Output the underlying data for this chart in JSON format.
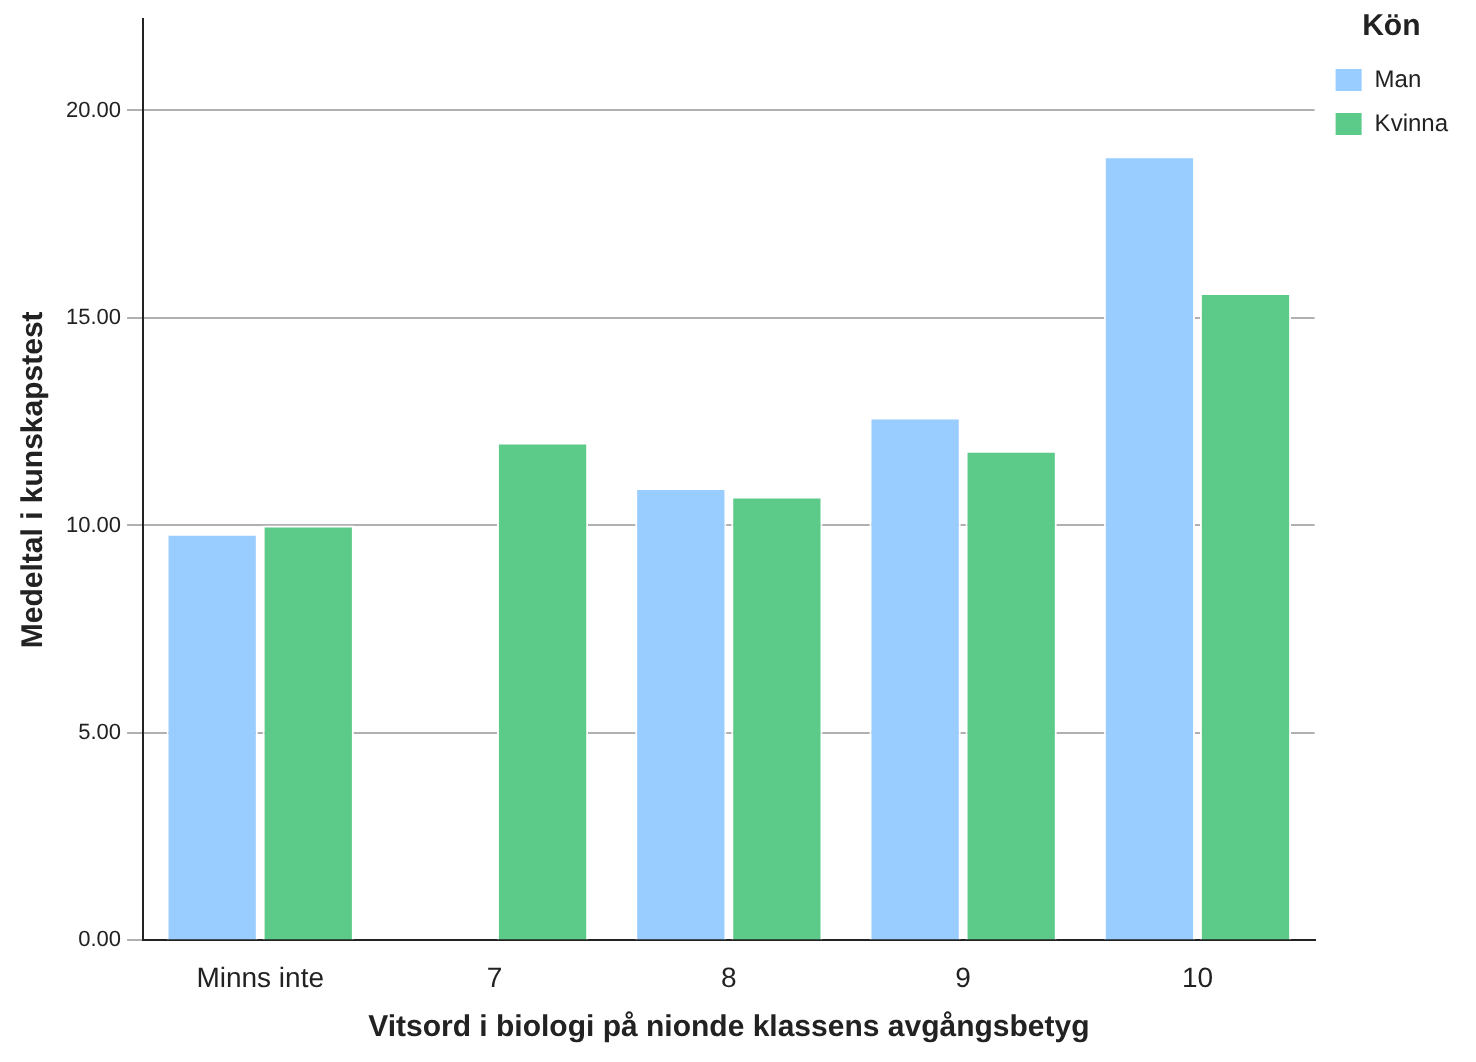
{
  "chart_data": {
    "type": "bar",
    "xlabel": "Vitsord i biologi på nionde klassens avgångsbetyg",
    "ylabel": "Medeltal i kunskapstest",
    "legend_title": "Kön",
    "categories": [
      "Minns inte",
      "7",
      "8",
      "9",
      "10"
    ],
    "series": [
      {
        "name": "Man",
        "color": "#99ccff",
        "values": [
          9.8,
          null,
          10.9,
          12.6,
          18.9
        ]
      },
      {
        "name": "Kvinna",
        "color": "#5ccb8a",
        "values": [
          10.0,
          12.0,
          10.7,
          11.8,
          15.6
        ]
      }
    ],
    "ylim": [
      0,
      22.2
    ],
    "yticks": [
      {
        "value": 0,
        "label": "0.00"
      },
      {
        "value": 5,
        "label": "5.00"
      },
      {
        "value": 10,
        "label": "10.00"
      },
      {
        "value": 15,
        "label": "15.00"
      },
      {
        "value": 20,
        "label": "20.00"
      }
    ],
    "grid": "y",
    "legend": "top right"
  }
}
